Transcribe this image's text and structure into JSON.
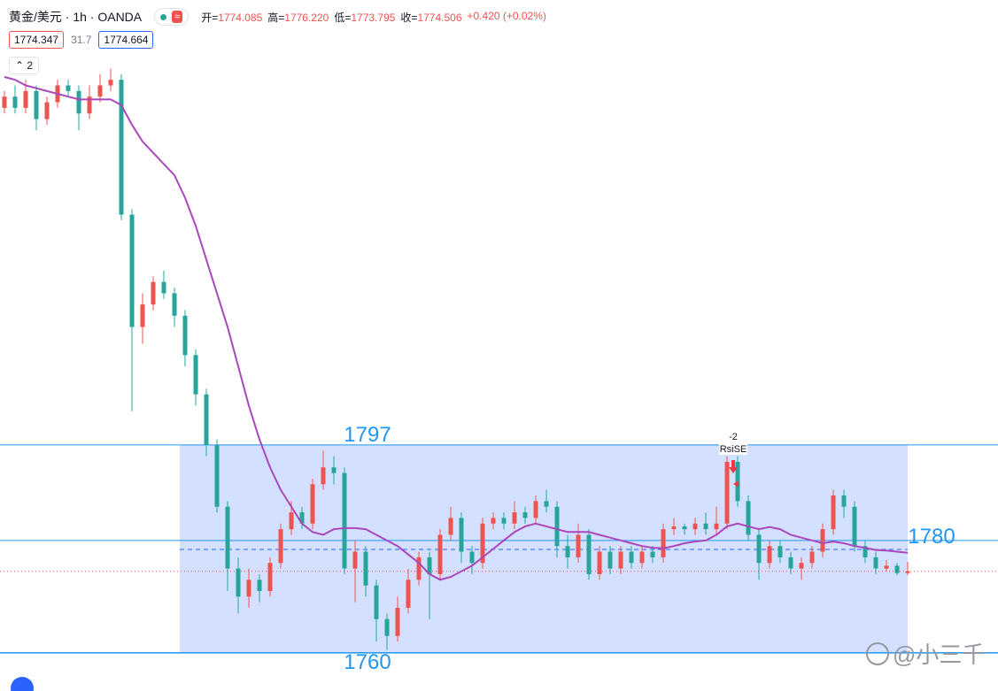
{
  "header": {
    "symbol": "黄金/美元 · 1h · OANDA",
    "ohlc": [
      {
        "label": "开=",
        "value": "1774.085"
      },
      {
        "label": "高=",
        "value": "1776.220"
      },
      {
        "label": "低=",
        "value": "1773.795"
      },
      {
        "label": "收=",
        "value": "1774.506"
      }
    ],
    "change": "+0.420 (+0.02%)",
    "price_boxes": [
      "1774.347",
      "31.7",
      "1774.664"
    ],
    "indicator_count": "2"
  },
  "watermark": "@小三千",
  "chart_data": {
    "type": "candlestick",
    "up_color": "#ef5350",
    "down_color": "#26a69a",
    "ma_color": "#ab47bc",
    "level_color": "#2196f3",
    "ylim": [
      1753.2,
      1876.2
    ],
    "open": [
      1857,
      1859,
      1857,
      1860,
      1855,
      1858,
      1861,
      1860,
      1856,
      1859,
      1861,
      1862,
      1838,
      1818,
      1822,
      1826,
      1824,
      1820,
      1813,
      1806,
      1797,
      1786,
      1775,
      1770,
      1773,
      1771,
      1776,
      1782,
      1785,
      1783,
      1790,
      1793,
      1792,
      1775,
      1778,
      1772,
      1766,
      1763,
      1768,
      1773,
      1777,
      1774,
      1781,
      1784,
      1778,
      1776,
      1783,
      1784,
      1783,
      1785,
      1784,
      1787,
      1786,
      1779,
      1777,
      1781,
      1774,
      1778,
      1775,
      1778,
      1776,
      1778,
      1777,
      1782,
      1782.5,
      1782,
      1783,
      1782,
      1783,
      1794,
      1787,
      1781,
      1776,
      1779,
      1777,
      1775,
      1776,
      1778,
      1782,
      1788,
      1786,
      1779,
      1777,
      1775,
      1775.5,
      1774.2
    ],
    "high": [
      1860,
      1861,
      1862,
      1861,
      1859,
      1862,
      1862,
      1861,
      1861,
      1863,
      1864,
      1863,
      1839,
      1824,
      1827,
      1828,
      1825,
      1821,
      1814,
      1807,
      1798,
      1787,
      1777,
      1775,
      1774,
      1777,
      1783,
      1787,
      1786,
      1791,
      1796,
      1795,
      1793,
      1780,
      1779,
      1773,
      1767,
      1770,
      1775,
      1778,
      1778,
      1782,
      1786,
      1785,
      1779,
      1784,
      1785,
      1785,
      1787,
      1786,
      1788,
      1789,
      1787,
      1781,
      1783,
      1782,
      1779,
      1779,
      1779,
      1779,
      1779,
      1779,
      1783,
      1784,
      1783,
      1784,
      1785,
      1786,
      1795,
      1795,
      1788,
      1782,
      1780,
      1780,
      1778,
      1777,
      1779,
      1783,
      1789,
      1789,
      1787,
      1780,
      1778,
      1776.5,
      1776,
      1776.2
    ],
    "low": [
      1856,
      1856,
      1856,
      1853,
      1854,
      1857,
      1859,
      1853,
      1855,
      1858,
      1860,
      1837,
      1803,
      1815,
      1821,
      1823,
      1818,
      1811,
      1804,
      1795,
      1785,
      1771,
      1767,
      1768,
      1769,
      1770,
      1775,
      1781,
      1782,
      1782,
      1789,
      1790,
      1774,
      1769,
      1770,
      1762,
      1760.5,
      1762,
      1767,
      1772,
      1766,
      1773,
      1780,
      1776,
      1774,
      1775,
      1782,
      1782,
      1782,
      1783,
      1783,
      1785,
      1777,
      1775,
      1776,
      1773,
      1773,
      1774,
      1774,
      1775,
      1775,
      1776,
      1776,
      1781,
      1781,
      1781,
      1781,
      1781,
      1782,
      1786,
      1780,
      1773,
      1775,
      1776,
      1774,
      1773,
      1775,
      1777,
      1781,
      1784,
      1778,
      1776,
      1774,
      1774.5,
      1773.8,
      1773.8
    ],
    "close": [
      1859,
      1857,
      1860,
      1855,
      1858,
      1861,
      1860,
      1856,
      1859,
      1861,
      1862,
      1838,
      1818,
      1822,
      1826,
      1824,
      1820,
      1813,
      1806,
      1797,
      1786,
      1775,
      1770,
      1773,
      1771,
      1776,
      1782,
      1785,
      1783,
      1790,
      1793,
      1792,
      1775,
      1778,
      1772,
      1766,
      1763,
      1768,
      1773,
      1777,
      1774,
      1781,
      1784,
      1778,
      1776,
      1783,
      1784,
      1783,
      1785,
      1784,
      1787,
      1786,
      1779,
      1777,
      1781,
      1774,
      1778,
      1775,
      1778,
      1776,
      1778,
      1777,
      1782,
      1782.5,
      1782,
      1783,
      1782,
      1783,
      1794,
      1787,
      1781,
      1776,
      1779,
      1777,
      1775,
      1776,
      1778,
      1782,
      1788,
      1786,
      1779,
      1777,
      1775,
      1775.5,
      1774.2,
      1774.5
    ],
    "ma": [
      1862.5,
      1862,
      1861,
      1860.5,
      1860,
      1859.5,
      1859,
      1858.5,
      1858.5,
      1858.5,
      1858.5,
      1857.5,
      1854,
      1851,
      1849,
      1847,
      1845,
      1841,
      1836,
      1830,
      1824,
      1818,
      1811,
      1804,
      1798,
      1793,
      1789,
      1786,
      1783,
      1781.5,
      1781,
      1782,
      1782.2,
      1782.2,
      1782,
      1781,
      1780,
      1779,
      1777.5,
      1776,
      1774,
      1773,
      1773.5,
      1774.5,
      1775.5,
      1777,
      1778.5,
      1780,
      1781.5,
      1782.5,
      1783,
      1782.5,
      1782,
      1781.5,
      1781.5,
      1781.5,
      1781,
      1780.5,
      1780,
      1779.5,
      1779,
      1778.7,
      1778.6,
      1779,
      1779.5,
      1779.8,
      1780,
      1781,
      1782.5,
      1783,
      1782.5,
      1782,
      1782.4,
      1782,
      1781,
      1780.5,
      1780,
      1779.5,
      1779.8,
      1779.5,
      1779,
      1778.7,
      1778.3,
      1778.2,
      1778,
      1777.8
    ],
    "levels": [
      1797,
      1780,
      1760
    ],
    "mid_level": 1778.4,
    "annotations": {
      "signal": "-2",
      "label": "RsiSE"
    }
  }
}
